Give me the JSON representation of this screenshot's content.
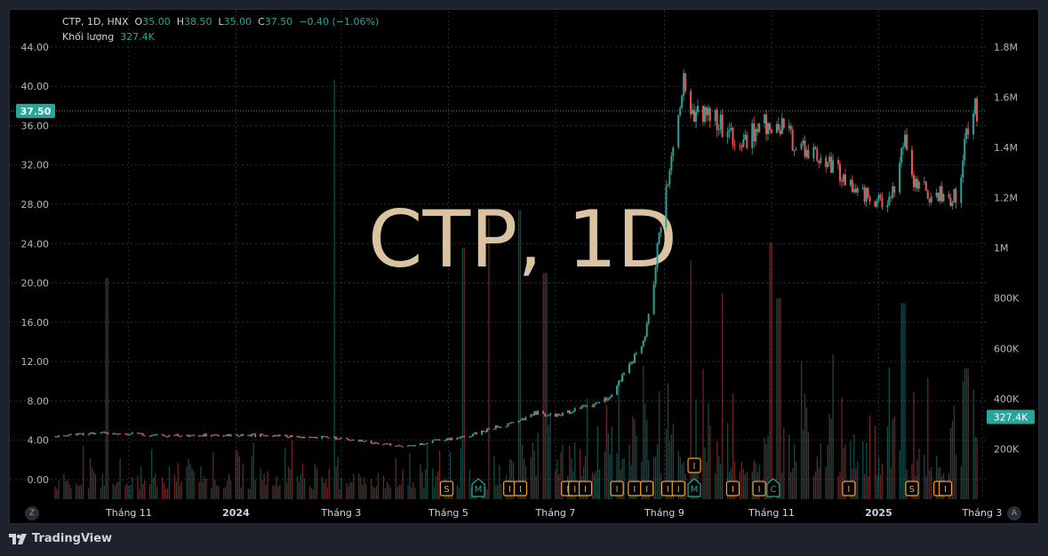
{
  "legend": {
    "symbol": "CTP, 1D, HNX",
    "o_label": "O",
    "o_value": "35.00",
    "h_label": "H",
    "h_value": "38.50",
    "l_label": "L",
    "l_value": "35.00",
    "c_label": "C",
    "c_value": "37.50",
    "change": "−0.40 (−1.06%)",
    "volume_label": "Khối lượng",
    "volume_value": "327.4K"
  },
  "watermark": "CTP, 1D",
  "price_badge": "37.50",
  "volume_badge": "327.4K",
  "axis_buttons": {
    "left": "Z",
    "right": "A"
  },
  "brand": "TradingView",
  "colors": {
    "up": "#26a69a",
    "down": "#ef5350",
    "watermark": "#d9c3a0",
    "event": "#f7a21b",
    "event_green": "#26a69a"
  },
  "chart_data": {
    "type": "candlestick",
    "price_axis": {
      "ticks": [
        "44.00",
        "40.00",
        "36.00",
        "32.00",
        "28.00",
        "24.00",
        "20.00",
        "16.00",
        "12.00",
        "8.00",
        "4.00",
        "0.00"
      ],
      "range": [
        -2,
        45.8
      ]
    },
    "volume_axis": {
      "ticks": [
        "1.8M",
        "1.6M",
        "1.4M",
        "1.2M",
        "1M",
        "800K",
        "600K",
        "400K",
        "200K"
      ],
      "range": [
        0,
        1870000
      ]
    },
    "x_labels": [
      {
        "text": "Tháng 11",
        "date": "2023-11-01",
        "bold": false
      },
      {
        "text": "2024",
        "date": "2024-01-01",
        "bold": true
      },
      {
        "text": "Tháng 3",
        "date": "2024-03-01",
        "bold": false
      },
      {
        "text": "Tháng 5",
        "date": "2024-05-01",
        "bold": false
      },
      {
        "text": "Tháng 7",
        "date": "2024-07-01",
        "bold": false
      },
      {
        "text": "Tháng 9",
        "date": "2024-09-01",
        "bold": false
      },
      {
        "text": "Tháng 11",
        "date": "2024-11-01",
        "bold": false
      },
      {
        "text": "2025",
        "date": "2025-01-01",
        "bold": true
      },
      {
        "text": "Tháng 3",
        "date": "2025-03-01",
        "bold": false
      }
    ],
    "date_range": [
      "2023-09-20",
      "2025-03-01"
    ],
    "price_path": [
      [
        "2023-09-20",
        4.4
      ],
      [
        "2023-10-15",
        4.8
      ],
      [
        "2023-11-15",
        4.5
      ],
      [
        "2024-01-15",
        4.5
      ],
      [
        "2024-03-01",
        4.2
      ],
      [
        "2024-03-25",
        3.6
      ],
      [
        "2024-04-10",
        3.4
      ],
      [
        "2024-04-25",
        4.0
      ],
      [
        "2024-05-10",
        4.3
      ],
      [
        "2024-05-25",
        5.2
      ],
      [
        "2024-06-10",
        5.8
      ],
      [
        "2024-06-20",
        6.8
      ],
      [
        "2024-07-01",
        6.5
      ],
      [
        "2024-07-20",
        7.5
      ],
      [
        "2024-08-01",
        8.3
      ],
      [
        "2024-08-10",
        11
      ],
      [
        "2024-08-20",
        14
      ],
      [
        "2024-08-25",
        19
      ],
      [
        "2024-08-30",
        26
      ],
      [
        "2024-09-05",
        33
      ],
      [
        "2024-09-12",
        40
      ],
      [
        "2024-09-15",
        37
      ],
      [
        "2024-10-01",
        36.5
      ],
      [
        "2024-10-15",
        34.5
      ],
      [
        "2024-11-01",
        36.5
      ],
      [
        "2024-11-20",
        33.5
      ],
      [
        "2024-12-10",
        31
      ],
      [
        "2025-01-01",
        28
      ],
      [
        "2025-01-10",
        29
      ],
      [
        "2025-01-15",
        35
      ],
      [
        "2025-01-20",
        30
      ],
      [
        "2025-02-01",
        29
      ],
      [
        "2025-02-15",
        28.5
      ],
      [
        "2025-02-20",
        35
      ],
      [
        "2025-02-24",
        38.5
      ],
      [
        "2025-02-26",
        37.5
      ]
    ],
    "volume_spikes": [
      [
        "2023-10-20",
        880000
      ],
      [
        "2024-02-25",
        1670000
      ],
      [
        "2024-05-10",
        1000000
      ],
      [
        "2024-05-25",
        1120000
      ],
      [
        "2024-06-10",
        1150000
      ],
      [
        "2024-06-25",
        900000
      ],
      [
        "2024-09-15",
        950000
      ],
      [
        "2024-10-05",
        820000
      ],
      [
        "2024-11-01",
        1020000
      ],
      [
        "2024-11-05",
        800000
      ],
      [
        "2025-01-15",
        780000
      ],
      [
        "2025-02-20",
        520000
      ]
    ],
    "events": [
      {
        "label": "S",
        "date": "2024-04-30",
        "row": 0,
        "green": false
      },
      {
        "label": "M",
        "date": "2024-05-18",
        "row": 0,
        "green": true
      },
      {
        "label": "I",
        "date": "2024-06-05",
        "row": 0,
        "green": false
      },
      {
        "label": "I",
        "date": "2024-06-11",
        "row": 0,
        "green": false
      },
      {
        "label": "I",
        "date": "2024-07-08",
        "row": 0,
        "green": false
      },
      {
        "label": "I",
        "date": "2024-07-12",
        "row": 0,
        "green": false
      },
      {
        "label": "I",
        "date": "2024-07-18",
        "row": 0,
        "green": false
      },
      {
        "label": "I",
        "date": "2024-08-05",
        "row": 0,
        "green": false
      },
      {
        "label": "I",
        "date": "2024-08-15",
        "row": 0,
        "green": false
      },
      {
        "label": "I",
        "date": "2024-08-22",
        "row": 0,
        "green": false
      },
      {
        "label": "I",
        "date": "2024-09-03",
        "row": 0,
        "green": false
      },
      {
        "label": "I",
        "date": "2024-09-09",
        "row": 0,
        "green": false
      },
      {
        "label": "M",
        "date": "2024-09-18",
        "row": 0,
        "green": true
      },
      {
        "label": "I",
        "date": "2024-09-18",
        "row": 1,
        "green": false
      },
      {
        "label": "I",
        "date": "2024-10-10",
        "row": 0,
        "green": false
      },
      {
        "label": "I",
        "date": "2024-10-25",
        "row": 0,
        "green": false
      },
      {
        "label": "C",
        "date": "2024-11-02",
        "row": 0,
        "green": true
      },
      {
        "label": "I",
        "date": "2024-12-15",
        "row": 0,
        "green": false
      },
      {
        "label": "S",
        "date": "2025-01-20",
        "row": 0,
        "green": false
      },
      {
        "label": "I",
        "date": "2025-02-05",
        "row": 0,
        "green": false
      },
      {
        "label": "I",
        "date": "2025-02-08",
        "row": 0,
        "green": false
      }
    ]
  }
}
